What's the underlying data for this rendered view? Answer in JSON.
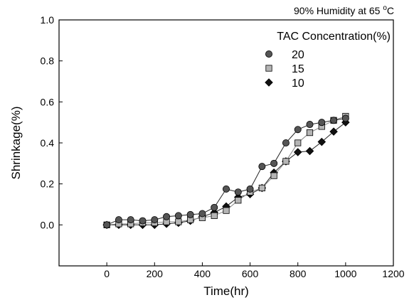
{
  "chart_data": {
    "type": "line",
    "title": "",
    "annotation": {
      "text": "90% Humidity at 65 ",
      "superscript": "o",
      "unit": "C"
    },
    "xlabel": "Time(hr)",
    "ylabel": "Shrinkage(%)",
    "xlim": [
      -200,
      1200
    ],
    "ylim": [
      -0.2,
      1.0
    ],
    "xticks": [
      0,
      200,
      400,
      600,
      800,
      1000,
      1200
    ],
    "xtick_labels": [
      "0",
      "200",
      "400",
      "600",
      "800",
      "1000",
      "1200"
    ],
    "yticks": [
      0.0,
      0.2,
      0.4,
      0.6,
      0.8,
      1.0
    ],
    "ytick_labels": [
      "0.0",
      "0.2",
      "0.4",
      "0.6",
      "0.8",
      "1.0"
    ],
    "grid": false,
    "legend": {
      "title": "TAC Concentration(%)",
      "placement": "top-right"
    },
    "series": [
      {
        "name": "20",
        "marker": "circle",
        "color": "#555555",
        "x": [
          0,
          50,
          100,
          150,
          200,
          250,
          300,
          350,
          400,
          450,
          500,
          550,
          600,
          650,
          700,
          750,
          800,
          850,
          900,
          950,
          1000
        ],
        "y": [
          0.0,
          0.025,
          0.025,
          0.02,
          0.025,
          0.04,
          0.045,
          0.05,
          0.055,
          0.085,
          0.175,
          0.16,
          0.175,
          0.285,
          0.3,
          0.4,
          0.465,
          0.49,
          0.5,
          0.51,
          0.52
        ]
      },
      {
        "name": "15",
        "marker": "square",
        "color": "#b5b5b5",
        "x": [
          0,
          50,
          100,
          150,
          200,
          250,
          300,
          350,
          400,
          450,
          500,
          550,
          600,
          650,
          700,
          750,
          800,
          850,
          900,
          950,
          1000
        ],
        "y": [
          0.0,
          0.005,
          0.005,
          0.01,
          0.01,
          0.015,
          0.015,
          0.025,
          0.035,
          0.045,
          0.07,
          0.12,
          0.16,
          0.18,
          0.24,
          0.31,
          0.4,
          0.45,
          0.48,
          0.51,
          0.53
        ]
      },
      {
        "name": "10",
        "marker": "diamond",
        "color": "#111111",
        "x": [
          0,
          50,
          100,
          150,
          200,
          250,
          300,
          350,
          400,
          450,
          500,
          550,
          600,
          650,
          700,
          750,
          800,
          850,
          900,
          950,
          1000
        ],
        "y": [
          0.0,
          0.0,
          0.0,
          0.0,
          0.0,
          0.005,
          0.01,
          0.02,
          0.04,
          0.06,
          0.09,
          0.135,
          0.15,
          0.18,
          0.255,
          0.31,
          0.355,
          0.36,
          0.405,
          0.455,
          0.5
        ]
      }
    ]
  }
}
